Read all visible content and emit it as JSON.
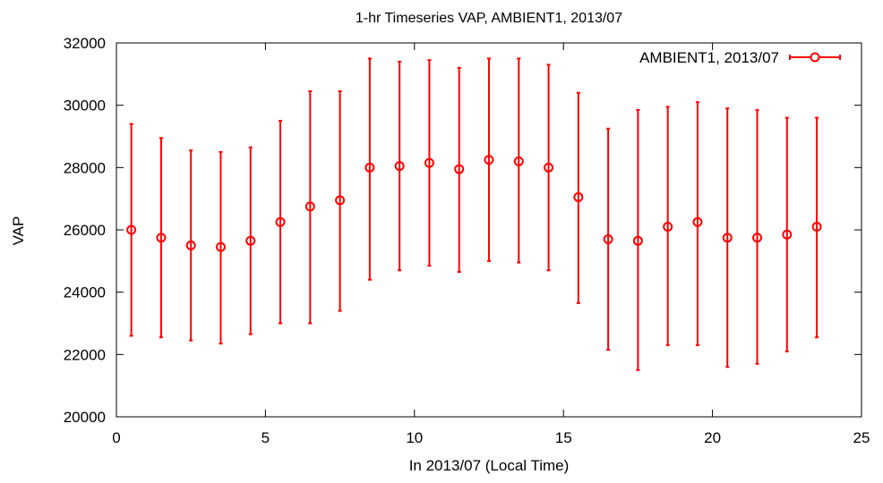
{
  "chart_data": {
    "type": "scatter",
    "title": "1-hr Timeseries VAP, AMBIENT1, 2013/07",
    "xlabel": "In 2013/07 (Local Time)",
    "ylabel": "VAP",
    "xlim": [
      0,
      25
    ],
    "ylim": [
      20000,
      32000
    ],
    "x_ticks": [
      0,
      5,
      10,
      15,
      20,
      25
    ],
    "y_ticks": [
      20000,
      22000,
      24000,
      26000,
      28000,
      30000,
      32000
    ],
    "grid": false,
    "legend_position": "top-right",
    "series": [
      {
        "name": "AMBIENT1, 2013/07",
        "color": "#ff0000",
        "marker": "open-circle",
        "error_bars": true,
        "x": [
          0.5,
          1.5,
          2.5,
          3.5,
          4.5,
          5.5,
          6.5,
          7.5,
          8.5,
          9.5,
          10.5,
          11.5,
          12.5,
          13.5,
          14.5,
          15.5,
          16.5,
          17.5,
          18.5,
          19.5,
          20.5,
          21.5,
          22.5,
          23.5
        ],
        "y": [
          26000,
          25750,
          25500,
          25450,
          25650,
          26250,
          26750,
          26950,
          28000,
          28050,
          28150,
          27950,
          28250,
          28200,
          28000,
          27050,
          25700,
          25650,
          26100,
          26250,
          25750,
          25750,
          25850,
          26100
        ],
        "y_low": [
          22600,
          22550,
          22450,
          22350,
          22650,
          23000,
          23000,
          23400,
          24400,
          24700,
          24850,
          24650,
          25000,
          24950,
          24700,
          23650,
          22150,
          21500,
          22300,
          22300,
          21600,
          21700,
          22100,
          22550
        ],
        "y_high": [
          29400,
          28950,
          28550,
          28500,
          28650,
          29500,
          30450,
          30450,
          31500,
          31400,
          31450,
          31200,
          31500,
          31500,
          31300,
          30400,
          29250,
          29850,
          29950,
          30100,
          29900,
          29850,
          29600,
          29600
        ]
      }
    ]
  }
}
